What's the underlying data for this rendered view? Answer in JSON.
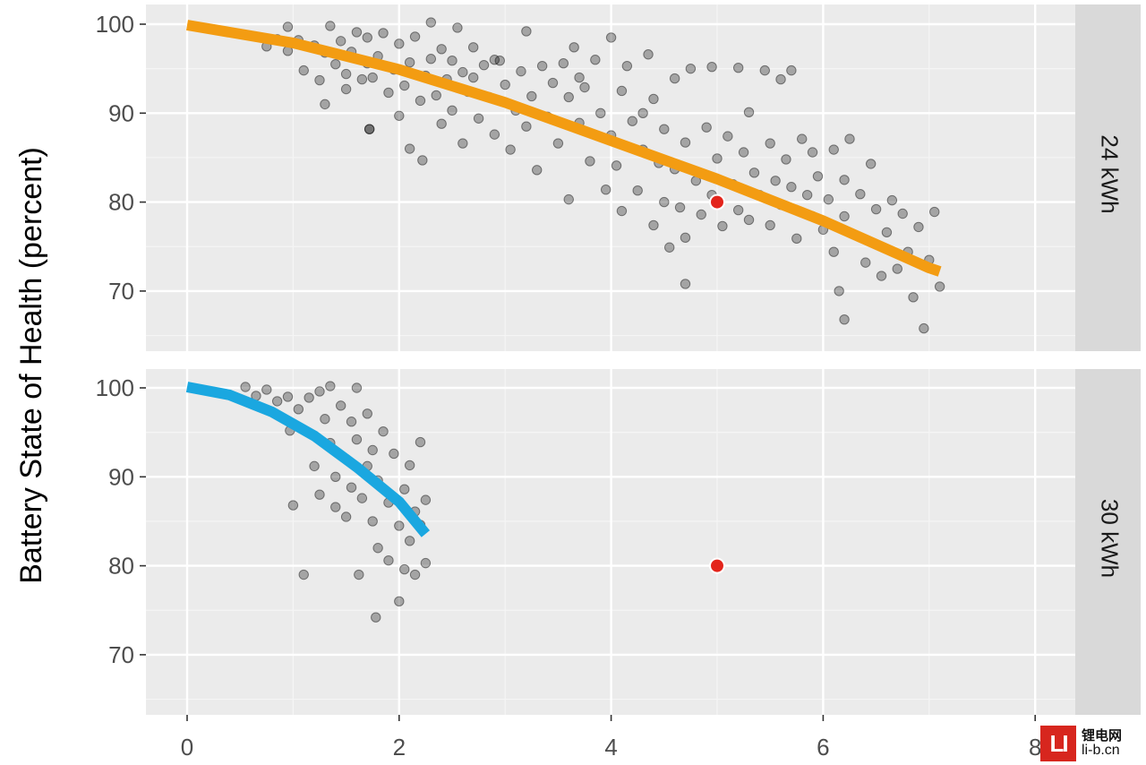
{
  "chart_data": {
    "type": "scatter",
    "ylabel": "Battery State of Health (percent)",
    "xlabel": "",
    "xlim": [
      0,
      8
    ],
    "x_ticks": [
      "0",
      "2",
      "4",
      "6",
      "8"
    ],
    "y_ticks": [
      "70",
      "80",
      "90",
      "100"
    ],
    "grid": true,
    "point_color": "#000000",
    "point_opacity": 0.3,
    "marker_color": "#e3241b",
    "panels": [
      {
        "label": "24 kWh",
        "ylim": [
          64,
          101
        ],
        "fit_color": "#f39c12",
        "fit_line": [
          [
            0,
            99.9
          ],
          [
            1,
            97.9
          ],
          [
            2,
            94.9
          ],
          [
            3,
            91.2
          ],
          [
            4,
            86.9
          ],
          [
            5,
            82.6
          ],
          [
            6,
            77.9
          ],
          [
            7,
            72.6
          ],
          [
            7.1,
            72.2
          ]
        ],
        "marker": [
          5,
          80
        ],
        "points": [
          [
            0.75,
            97.5
          ],
          [
            0.85,
            98.3
          ],
          [
            0.95,
            99.7
          ],
          [
            0.95,
            97.0
          ],
          [
            1.05,
            98.2
          ],
          [
            1.1,
            94.8
          ],
          [
            1.2,
            97.6
          ],
          [
            1.25,
            93.7
          ],
          [
            1.3,
            91.0
          ],
          [
            1.3,
            96.8
          ],
          [
            1.35,
            99.8
          ],
          [
            1.4,
            95.5
          ],
          [
            1.45,
            98.1
          ],
          [
            1.5,
            92.7
          ],
          [
            1.5,
            94.4
          ],
          [
            1.55,
            96.9
          ],
          [
            1.6,
            99.1
          ],
          [
            1.65,
            93.8
          ],
          [
            1.7,
            95.6
          ],
          [
            1.7,
            98.5
          ],
          [
            1.72,
            88.2
          ],
          [
            1.75,
            94.0
          ],
          [
            1.8,
            96.4
          ],
          [
            1.85,
            99.0
          ],
          [
            1.9,
            92.3
          ],
          [
            1.95,
            94.9
          ],
          [
            2.0,
            97.8
          ],
          [
            2.0,
            89.7
          ],
          [
            2.05,
            93.1
          ],
          [
            2.1,
            95.7
          ],
          [
            2.1,
            86.0
          ],
          [
            2.15,
            98.6
          ],
          [
            2.2,
            91.4
          ],
          [
            2.22,
            84.7
          ],
          [
            2.25,
            94.2
          ],
          [
            2.3,
            100.2
          ],
          [
            2.3,
            96.1
          ],
          [
            2.35,
            92.0
          ],
          [
            2.4,
            88.8
          ],
          [
            2.4,
            97.2
          ],
          [
            2.45,
            93.8
          ],
          [
            2.5,
            95.9
          ],
          [
            2.5,
            90.3
          ],
          [
            2.55,
            99.6
          ],
          [
            2.6,
            94.6
          ],
          [
            2.6,
            86.6
          ],
          [
            2.65,
            92.4
          ],
          [
            2.7,
            97.4
          ],
          [
            2.7,
            94.0
          ],
          [
            2.75,
            89.4
          ],
          [
            2.8,
            95.4
          ],
          [
            2.85,
            91.8
          ],
          [
            2.9,
            87.6
          ],
          [
            2.95,
            95.9
          ],
          [
            3.0,
            93.2
          ],
          [
            3.05,
            85.9
          ],
          [
            3.1,
            90.3
          ],
          [
            3.15,
            94.7
          ],
          [
            3.2,
            99.2
          ],
          [
            3.2,
            88.5
          ],
          [
            3.25,
            91.9
          ],
          [
            3.3,
            83.6
          ],
          [
            3.35,
            95.3
          ],
          [
            3.4,
            89.6
          ],
          [
            3.45,
            93.4
          ],
          [
            3.5,
            86.6
          ],
          [
            3.55,
            95.6
          ],
          [
            3.6,
            91.8
          ],
          [
            3.6,
            80.3
          ],
          [
            3.65,
            97.4
          ],
          [
            3.7,
            88.9
          ],
          [
            3.75,
            92.9
          ],
          [
            3.8,
            84.6
          ],
          [
            3.85,
            96.0
          ],
          [
            3.9,
            90.0
          ],
          [
            3.95,
            81.4
          ],
          [
            4.0,
            98.5
          ],
          [
            4.0,
            87.5
          ],
          [
            4.05,
            84.1
          ],
          [
            4.1,
            92.5
          ],
          [
            4.1,
            79.0
          ],
          [
            4.15,
            95.3
          ],
          [
            4.2,
            89.1
          ],
          [
            4.25,
            81.3
          ],
          [
            4.3,
            85.9
          ],
          [
            4.35,
            96.6
          ],
          [
            4.4,
            91.6
          ],
          [
            4.4,
            77.4
          ],
          [
            4.45,
            84.4
          ],
          [
            4.5,
            88.2
          ],
          [
            4.5,
            80.0
          ],
          [
            4.55,
            74.9
          ],
          [
            4.6,
            93.9
          ],
          [
            4.6,
            83.7
          ],
          [
            4.65,
            79.4
          ],
          [
            4.7,
            86.7
          ],
          [
            4.7,
            76.0
          ],
          [
            4.75,
            95.0
          ],
          [
            4.8,
            82.4
          ],
          [
            4.85,
            78.6
          ],
          [
            4.9,
            88.4
          ],
          [
            4.95,
            95.2
          ],
          [
            4.95,
            80.8
          ],
          [
            5.0,
            84.9
          ],
          [
            5.05,
            77.3
          ],
          [
            5.1,
            87.4
          ],
          [
            5.15,
            82.0
          ],
          [
            5.2,
            95.1
          ],
          [
            5.2,
            79.1
          ],
          [
            5.25,
            85.6
          ],
          [
            5.3,
            90.1
          ],
          [
            5.3,
            78.0
          ],
          [
            5.35,
            83.3
          ],
          [
            5.4,
            80.8
          ],
          [
            5.45,
            94.8
          ],
          [
            5.5,
            86.6
          ],
          [
            5.5,
            77.4
          ],
          [
            5.55,
            82.4
          ],
          [
            5.6,
            93.8
          ],
          [
            5.6,
            79.7
          ],
          [
            5.65,
            84.8
          ],
          [
            5.7,
            81.7
          ],
          [
            5.75,
            75.9
          ],
          [
            5.8,
            87.1
          ],
          [
            5.85,
            80.8
          ],
          [
            5.9,
            78.4
          ],
          [
            5.9,
            85.6
          ],
          [
            5.95,
            82.9
          ],
          [
            6.0,
            76.9
          ],
          [
            6.05,
            80.3
          ],
          [
            6.1,
            85.9
          ],
          [
            6.1,
            74.4
          ],
          [
            6.15,
            70.0
          ],
          [
            6.2,
            82.5
          ],
          [
            6.2,
            78.4
          ],
          [
            6.25,
            87.1
          ],
          [
            6.3,
            76.3
          ],
          [
            6.35,
            80.9
          ],
          [
            6.4,
            73.2
          ],
          [
            6.45,
            84.3
          ],
          [
            6.5,
            79.2
          ],
          [
            6.55,
            71.7
          ],
          [
            6.6,
            76.6
          ],
          [
            6.65,
            80.2
          ],
          [
            6.7,
            72.5
          ],
          [
            6.75,
            78.7
          ],
          [
            6.8,
            74.4
          ],
          [
            6.85,
            69.3
          ],
          [
            6.9,
            77.2
          ],
          [
            7.0,
            73.5
          ],
          [
            7.05,
            78.9
          ],
          [
            7.1,
            70.5
          ],
          [
            6.2,
            66.8
          ],
          [
            6.95,
            65.8
          ],
          [
            4.7,
            70.8
          ],
          [
            1.72,
            88.2
          ],
          [
            2.9,
            96.0
          ],
          [
            3.7,
            94.0
          ],
          [
            4.3,
            90.0
          ],
          [
            5.7,
            94.8
          ]
        ]
      },
      {
        "label": "30 kWh",
        "ylim": [
          64,
          101
        ],
        "fit_color": "#1aa7e0",
        "fit_line": [
          [
            0,
            100.1
          ],
          [
            0.4,
            99.2
          ],
          [
            0.8,
            97.3
          ],
          [
            1.2,
            94.6
          ],
          [
            1.6,
            91.1
          ],
          [
            2.0,
            87.2
          ],
          [
            2.25,
            83.6
          ]
        ],
        "marker": [
          5,
          80
        ],
        "points": [
          [
            0.55,
            100.1
          ],
          [
            0.65,
            99.1
          ],
          [
            0.75,
            99.8
          ],
          [
            0.85,
            98.5
          ],
          [
            0.95,
            99.0
          ],
          [
            0.97,
            95.2
          ],
          [
            1.0,
            86.8
          ],
          [
            1.05,
            97.6
          ],
          [
            1.1,
            79.0
          ],
          [
            1.15,
            98.9
          ],
          [
            1.2,
            91.2
          ],
          [
            1.25,
            99.6
          ],
          [
            1.25,
            88.0
          ],
          [
            1.3,
            96.5
          ],
          [
            1.35,
            93.8
          ],
          [
            1.35,
            100.2
          ],
          [
            1.4,
            90.0
          ],
          [
            1.4,
            86.6
          ],
          [
            1.45,
            98.0
          ],
          [
            1.5,
            92.0
          ],
          [
            1.5,
            85.5
          ],
          [
            1.55,
            96.2
          ],
          [
            1.55,
            88.8
          ],
          [
            1.6,
            100.0
          ],
          [
            1.6,
            94.2
          ],
          [
            1.62,
            79.0
          ],
          [
            1.65,
            87.6
          ],
          [
            1.7,
            91.2
          ],
          [
            1.7,
            97.1
          ],
          [
            1.75,
            85.0
          ],
          [
            1.75,
            93.0
          ],
          [
            1.78,
            74.2
          ],
          [
            1.8,
            89.6
          ],
          [
            1.8,
            82.0
          ],
          [
            1.85,
            95.1
          ],
          [
            1.9,
            87.1
          ],
          [
            1.9,
            80.6
          ],
          [
            1.95,
            92.6
          ],
          [
            2.0,
            84.5
          ],
          [
            2.0,
            76.0
          ],
          [
            2.05,
            88.6
          ],
          [
            2.05,
            79.6
          ],
          [
            2.1,
            91.3
          ],
          [
            2.1,
            82.8
          ],
          [
            2.15,
            86.1
          ],
          [
            2.15,
            79.0
          ],
          [
            2.2,
            93.9
          ],
          [
            2.2,
            84.6
          ],
          [
            2.25,
            87.4
          ],
          [
            2.25,
            80.3
          ]
        ]
      }
    ]
  }
}
